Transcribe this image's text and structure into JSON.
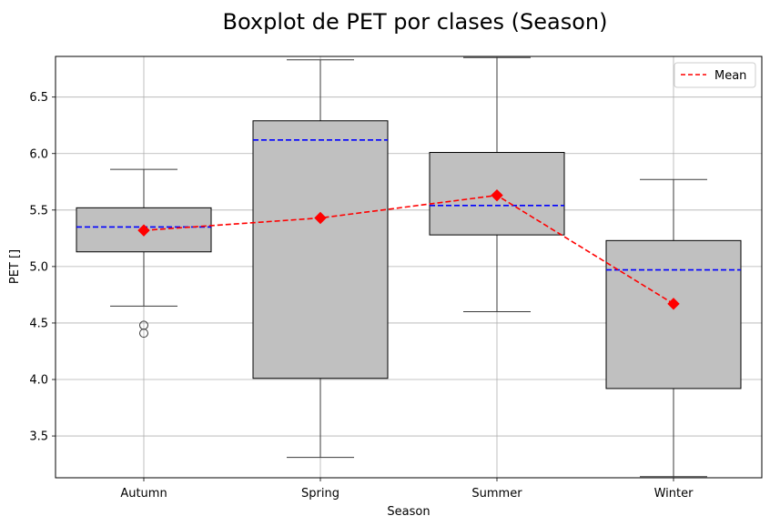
{
  "chart_data": {
    "type": "box",
    "title": "Boxplot de PET por clases (Season)",
    "xlabel": "Season",
    "ylabel": "PET []",
    "ylim": [
      3.13,
      6.86
    ],
    "yticks": [
      3.5,
      4.0,
      4.5,
      5.0,
      5.5,
      6.0,
      6.5
    ],
    "ytick_labels": [
      "3.5",
      "4.0",
      "4.5",
      "5.0",
      "5.5",
      "6.0",
      "6.5"
    ],
    "grid": true,
    "legend": {
      "position": "top-right",
      "entries": [
        "Mean"
      ]
    },
    "colors": {
      "box_fill": "#c0c0c0",
      "median": "#0000ff",
      "mean": "#ff0000",
      "grid": "#b0b0b0",
      "whisker": "#3a3a3a"
    },
    "categories": [
      "Autumn",
      "Spring",
      "Summer",
      "Winter"
    ],
    "boxes": [
      {
        "whisker_low": 4.65,
        "q1": 5.13,
        "median": 5.35,
        "q3": 5.52,
        "whisker_high": 5.86,
        "outliers": [
          4.48,
          4.41
        ]
      },
      {
        "whisker_low": 3.31,
        "q1": 4.01,
        "median": 6.12,
        "q3": 6.29,
        "whisker_high": 6.83,
        "outliers": []
      },
      {
        "whisker_low": 4.6,
        "q1": 5.28,
        "median": 5.54,
        "q3": 6.01,
        "whisker_high": 6.85,
        "outliers": []
      },
      {
        "whisker_low": 3.14,
        "q1": 3.92,
        "median": 4.97,
        "q3": 5.23,
        "whisker_high": 5.77,
        "outliers": []
      }
    ],
    "means": [
      5.32,
      5.43,
      5.63,
      4.67
    ]
  }
}
